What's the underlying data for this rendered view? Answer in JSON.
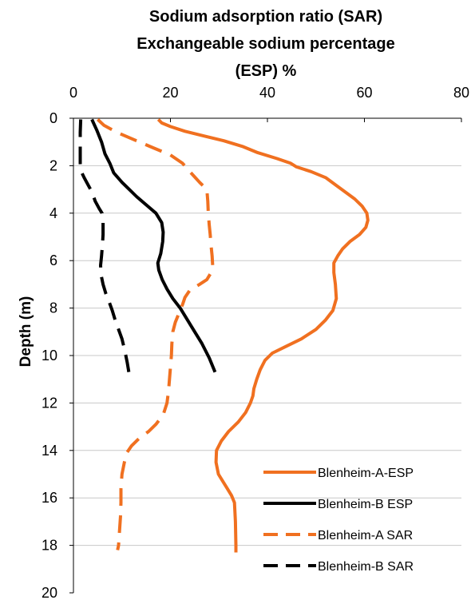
{
  "chart_data": {
    "type": "line",
    "title_lines": [
      "Sodium adsorption ratio (SAR)",
      "Exchangeable sodium percentage",
      "(ESP) %"
    ],
    "xlabel": "",
    "ylabel": "Depth (m)",
    "x_axis_position": "top",
    "y_axis_inverted": true,
    "xlim": [
      0,
      80
    ],
    "ylim": [
      0,
      20
    ],
    "x_ticks": [
      0,
      20,
      40,
      60,
      80
    ],
    "y_ticks": [
      0,
      2,
      4,
      6,
      8,
      10,
      12,
      14,
      16,
      18,
      20
    ],
    "grid": "horizontal",
    "legend_position": "bottom-right",
    "series": [
      {
        "name": "Blenheim-A-ESP",
        "color": "#f07020",
        "dash": "solid",
        "points": [
          [
            17.5,
            0.05
          ],
          [
            18.2,
            0.2
          ],
          [
            20,
            0.35
          ],
          [
            23,
            0.55
          ],
          [
            27,
            0.75
          ],
          [
            31,
            0.95
          ],
          [
            35,
            1.2
          ],
          [
            38,
            1.45
          ],
          [
            42,
            1.7
          ],
          [
            44.8,
            1.9
          ],
          [
            46,
            2.05
          ],
          [
            49,
            2.25
          ],
          [
            52,
            2.5
          ],
          [
            54,
            2.8
          ],
          [
            56,
            3.1
          ],
          [
            58,
            3.4
          ],
          [
            59.5,
            3.7
          ],
          [
            60.5,
            4.0
          ],
          [
            60.7,
            4.3
          ],
          [
            60.3,
            4.6
          ],
          [
            59,
            4.9
          ],
          [
            57,
            5.2
          ],
          [
            55.5,
            5.5
          ],
          [
            54.5,
            5.8
          ],
          [
            53.7,
            6.1
          ],
          [
            53.7,
            6.5
          ],
          [
            54,
            7.0
          ],
          [
            54.2,
            7.6
          ],
          [
            53.5,
            8.1
          ],
          [
            52,
            8.5
          ],
          [
            50,
            8.9
          ],
          [
            47,
            9.3
          ],
          [
            44,
            9.6
          ],
          [
            41,
            9.9
          ],
          [
            39.5,
            10.2
          ],
          [
            38.5,
            10.6
          ],
          [
            37.8,
            11.0
          ],
          [
            37.2,
            11.4
          ],
          [
            37,
            11.7
          ],
          [
            36.5,
            12.0
          ],
          [
            35.5,
            12.4
          ],
          [
            34,
            12.8
          ],
          [
            32,
            13.2
          ],
          [
            30.5,
            13.6
          ],
          [
            29.5,
            14.0
          ],
          [
            29.4,
            14.5
          ],
          [
            29.9,
            15.0
          ],
          [
            30.8,
            15.3
          ],
          [
            31.7,
            15.6
          ],
          [
            32.6,
            15.9
          ],
          [
            33.2,
            16.2
          ],
          [
            33.4,
            17.0
          ],
          [
            33.5,
            18.0
          ],
          [
            33.5,
            18.3
          ]
        ]
      },
      {
        "name": "Blenheim-B ESP",
        "color": "#000000",
        "dash": "solid",
        "points": [
          [
            3.8,
            0.05
          ],
          [
            4.8,
            0.5
          ],
          [
            5.8,
            1.0
          ],
          [
            6.5,
            1.5
          ],
          [
            7.5,
            1.9
          ],
          [
            8.3,
            2.3
          ],
          [
            10,
            2.7
          ],
          [
            11.5,
            3.0
          ],
          [
            13,
            3.3
          ],
          [
            15,
            3.65
          ],
          [
            17,
            4.0
          ],
          [
            18.2,
            4.4
          ],
          [
            18.5,
            4.8
          ],
          [
            18.4,
            5.2
          ],
          [
            18,
            5.7
          ],
          [
            17.4,
            6.1
          ],
          [
            17.6,
            6.4
          ],
          [
            18.3,
            6.8
          ],
          [
            19.3,
            7.2
          ],
          [
            20.5,
            7.6
          ],
          [
            22,
            8.0
          ],
          [
            23.5,
            8.5
          ],
          [
            25,
            9.0
          ],
          [
            26.5,
            9.5
          ],
          [
            28,
            10.1
          ],
          [
            29.2,
            10.7
          ]
        ]
      },
      {
        "name": "Blenheim-A SAR",
        "color": "#f07020",
        "dash": "dash",
        "points": [
          [
            5,
            0.05
          ],
          [
            6.3,
            0.3
          ],
          [
            9,
            0.6
          ],
          [
            13,
            0.95
          ],
          [
            16.5,
            1.25
          ],
          [
            20,
            1.55
          ],
          [
            22.5,
            1.9
          ],
          [
            24,
            2.25
          ],
          [
            26,
            2.7
          ],
          [
            27.5,
            3.0
          ],
          [
            27.7,
            3.5
          ],
          [
            27.8,
            4.0
          ],
          [
            28,
            4.5
          ],
          [
            28.2,
            4.9
          ],
          [
            28.4,
            5.4
          ],
          [
            28.6,
            5.8
          ],
          [
            28.7,
            6.2
          ],
          [
            28.4,
            6.5
          ],
          [
            27.5,
            6.8
          ],
          [
            26,
            7.0
          ],
          [
            24,
            7.25
          ],
          [
            23,
            7.55
          ],
          [
            22.5,
            7.85
          ],
          [
            21.8,
            8.2
          ],
          [
            21,
            8.6
          ],
          [
            20.5,
            9.0
          ],
          [
            20.3,
            9.5
          ],
          [
            20.2,
            10.0
          ],
          [
            20,
            10.5
          ],
          [
            19.8,
            11.0
          ],
          [
            19.6,
            11.5
          ],
          [
            19.3,
            12.0
          ],
          [
            18.5,
            12.5
          ],
          [
            17,
            12.9
          ],
          [
            15.5,
            13.2
          ],
          [
            13.5,
            13.5
          ],
          [
            12,
            13.8
          ],
          [
            11,
            14.1
          ],
          [
            10.5,
            14.5
          ],
          [
            10,
            15.0
          ],
          [
            9.8,
            15.6
          ],
          [
            9.8,
            16.2
          ],
          [
            9.7,
            16.8
          ],
          [
            9.5,
            17.4
          ],
          [
            9.3,
            18.0
          ],
          [
            9.1,
            18.2
          ]
        ]
      },
      {
        "name": "Blenheim-B SAR",
        "color": "#000000",
        "dash": "dash",
        "points": [
          [
            1.5,
            0.05
          ],
          [
            1.4,
            0.6
          ],
          [
            1.4,
            1.2
          ],
          [
            1.4,
            1.9
          ],
          [
            1.5,
            2.2
          ],
          [
            2.2,
            2.5
          ],
          [
            3,
            2.8
          ],
          [
            3.8,
            3.1
          ],
          [
            4.5,
            3.5
          ],
          [
            5.3,
            3.8
          ],
          [
            5.9,
            4.0
          ],
          [
            6.1,
            4.4
          ],
          [
            6.1,
            4.9
          ],
          [
            6,
            5.3
          ],
          [
            5.8,
            5.8
          ],
          [
            5.6,
            6.2
          ],
          [
            5.7,
            6.6
          ],
          [
            6.1,
            7.0
          ],
          [
            6.7,
            7.4
          ],
          [
            7.3,
            7.7
          ],
          [
            8,
            8.1
          ],
          [
            8.6,
            8.5
          ],
          [
            9.3,
            8.9
          ],
          [
            10,
            9.3
          ],
          [
            10.6,
            9.8
          ],
          [
            11.1,
            10.3
          ],
          [
            11.5,
            10.8
          ],
          [
            11.6,
            11.0
          ]
        ]
      }
    ]
  }
}
